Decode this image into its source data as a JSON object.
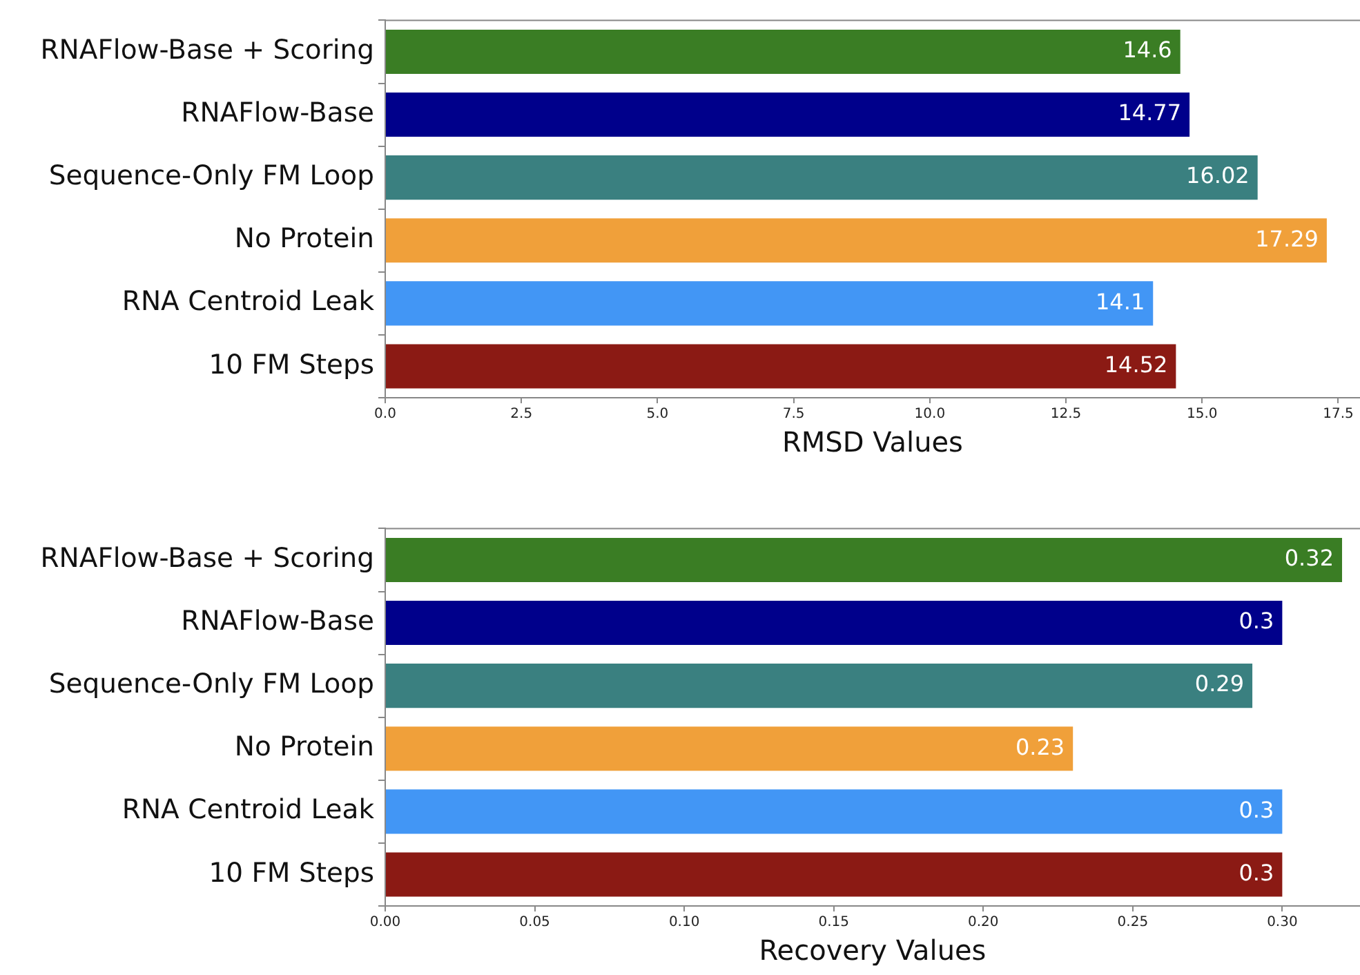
{
  "chart_data": [
    {
      "type": "bar",
      "orientation": "horizontal",
      "xlabel": "RMSD Values",
      "categories": [
        "RNAFlow-Base + Scoring",
        "RNAFlow-Base",
        "Sequence-Only FM Loop",
        "No Protein",
        "RNA Centroid Leak",
        "10 FM Steps"
      ],
      "values": [
        14.6,
        14.77,
        16.02,
        17.29,
        14.1,
        14.52
      ],
      "colors": [
        "#3a7d24",
        "#00008b",
        "#3a8080",
        "#f0a03a",
        "#4296f5",
        "#8b1a14"
      ],
      "xlim": [
        0,
        17.9
      ],
      "xticks": [
        {
          "value": 0,
          "label": "0.0"
        },
        2.5,
        {
          "value": 5,
          "label": "5.0"
        },
        7.5,
        {
          "value": 10,
          "label": "10.0"
        },
        12.5,
        {
          "value": 15,
          "label": "15.0"
        },
        17.5
      ],
      "data_labels": true,
      "grid": false,
      "legend": false
    },
    {
      "type": "bar",
      "orientation": "horizontal",
      "xlabel": "Recovery Values",
      "categories": [
        "RNAFlow-Base + Scoring",
        "RNAFlow-Base",
        "Sequence-Only FM Loop",
        "No Protein",
        "RNA Centroid Leak",
        "10 FM Steps"
      ],
      "values": [
        0.32,
        0.3,
        0.29,
        0.23,
        0.3,
        0.3
      ],
      "colors": [
        "#3a7d24",
        "#00008b",
        "#3a8080",
        "#f0a03a",
        "#4296f5",
        "#8b1a14"
      ],
      "xlim": [
        0,
        0.326
      ],
      "xticks": [
        {
          "value": 0,
          "label": "0.00"
        },
        0.05,
        {
          "value": 0.1,
          "label": "0.10"
        },
        0.15,
        {
          "value": 0.2,
          "label": "0.20"
        },
        0.25,
        {
          "value": 0.3,
          "label": "0.30"
        }
      ],
      "data_labels": true,
      "grid": false,
      "legend": false
    }
  ]
}
